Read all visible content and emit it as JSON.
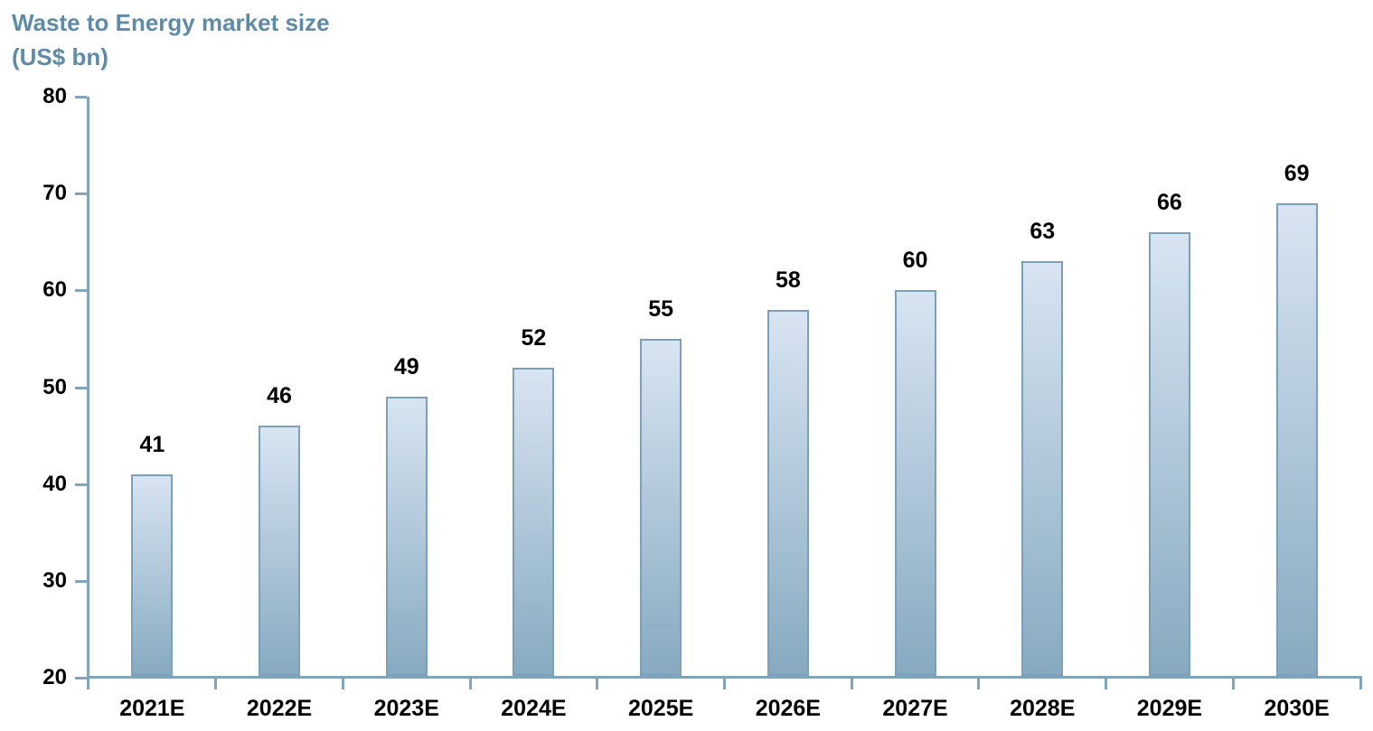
{
  "title": {
    "line1": "Waste to Energy market size",
    "line2": "(US$ bn)"
  },
  "chart_data": {
    "type": "bar",
    "title": "Waste to Energy market size (US$ bn)",
    "categories": [
      "2021E",
      "2022E",
      "2023E",
      "2024E",
      "2025E",
      "2026E",
      "2027E",
      "2028E",
      "2029E",
      "2030E"
    ],
    "values": [
      41,
      46,
      49,
      52,
      55,
      58,
      60,
      63,
      66,
      69
    ],
    "data_labels": [
      "41",
      "46",
      "49",
      "52",
      "55",
      "58",
      "60",
      "63",
      "66",
      "69"
    ],
    "xlabel": "",
    "ylabel": "",
    "ylim": [
      20,
      80
    ],
    "yticks": [
      20,
      30,
      40,
      50,
      60,
      70,
      80
    ],
    "grid": false,
    "legend": null,
    "colors": {
      "title_color": "#5E8CA8",
      "axis_color": "#7FA4BC",
      "bar_border": "#7BA0B9",
      "bar_fill_top": "#D8E4F2",
      "bar_fill_bottom": "#87AAC0",
      "label_color": "#000000"
    }
  }
}
